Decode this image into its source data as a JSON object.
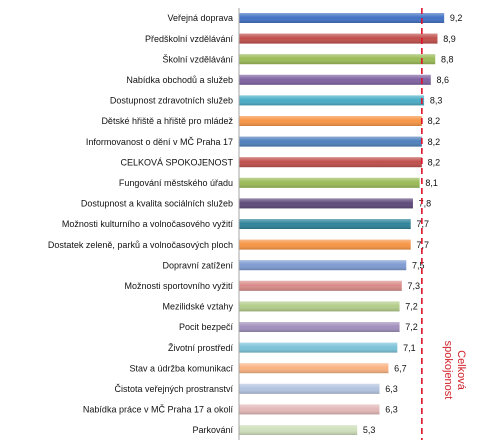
{
  "chart_data": {
    "type": "bar",
    "orientation": "horizontal",
    "categories": [
      "Veřejná doprava",
      "Předškolní vzdělávání",
      "Školní vzdělávání",
      "Nabídka obchodů a služeb",
      "Dostupnost zdravotních služeb",
      "Dětské hřiště a hřiště pro mládež",
      "Informovanost o dění v MČ Praha 17",
      "CELKOVÁ SPOKOJENOST",
      "Fungování městského úřadu",
      "Dostupnost a kvalita sociálních služeb",
      "Možnosti kulturního a volnočasového vyžití",
      "Dostatek zeleně, parků a volnočasových ploch",
      "Dopravní zatížení",
      "Možnosti sportovního vyžití",
      "Mezilidské vztahy",
      "Pocit bezpečí",
      "Životní prostředí",
      "Stav a údržba komunikací",
      "Čistota veřejných prostranství",
      "Nabídka práce v MČ Praha 17 a okolí",
      "Parkování"
    ],
    "values": [
      9.2,
      8.9,
      8.8,
      8.6,
      8.3,
      8.2,
      8.2,
      8.2,
      8.1,
      7.8,
      7.7,
      7.7,
      7.5,
      7.3,
      7.2,
      7.2,
      7.1,
      6.7,
      6.3,
      6.3,
      5.3
    ],
    "value_labels": [
      "9,2",
      "8,9",
      "8,8",
      "8,6",
      "8,3",
      "8,2",
      "8,2",
      "8,2",
      "8,1",
      "7,8",
      "7,7",
      "7,7",
      "7,5",
      "7,3",
      "7,2",
      "7,2",
      "7,1",
      "6,7",
      "6,3",
      "6,3",
      "5,3"
    ],
    "colors": [
      "#4472C4",
      "#C0504D",
      "#9BBB59",
      "#8064A2",
      "#4BACC6",
      "#F79646",
      "#4F81BD",
      "#C0504D",
      "#9BBB59",
      "#604A7B",
      "#31849B",
      "#F79646",
      "#7F9BD2",
      "#D98C8A",
      "#B3CC8A",
      "#A190BD",
      "#7DC3D9",
      "#FAB382",
      "#B4C4E0",
      "#E3B9B8",
      "#CFDFBC"
    ],
    "reference_line": {
      "value": 8.2,
      "label_lines": [
        "Celková",
        "spokojenost"
      ],
      "color": "#E0102A"
    },
    "xlim": [
      0,
      10
    ],
    "grid": false,
    "legend": "none"
  }
}
